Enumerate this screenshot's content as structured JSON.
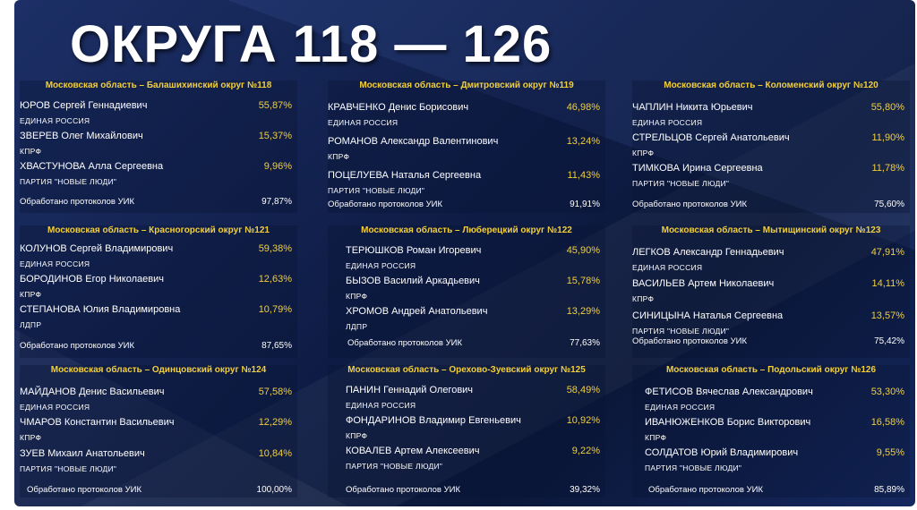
{
  "title": "ОКРУГА 118 — 126",
  "protocols_label": "Обработано протоколов УИК",
  "districts": [
    {
      "header": "Московская область – Балашихинский округ №118",
      "candidates": [
        {
          "name": "ЮРОВ Сергей Геннадиевич",
          "party": "ЕДИНАЯ РОССИЯ",
          "pct": "55,87%"
        },
        {
          "name": "ЗВЕРЕВ Олег Михайлович",
          "party": "КПРФ",
          "pct": "15,37%"
        },
        {
          "name": "ХВАСТУНОВА Алла Сергеевна",
          "party": "ПАРТИЯ \"НОВЫЕ ЛЮДИ\"",
          "pct": "9,96%"
        }
      ],
      "protocols": "97,87%"
    },
    {
      "header": "Московская область – Дмитровский округ №119",
      "candidates": [
        {
          "name": "КРАВЧЕНКО Денис Борисович",
          "party": "ЕДИНАЯ РОССИЯ",
          "pct": "46,98%"
        },
        {
          "name": "РОМАНОВ Александр Валентинович",
          "party": "КПРФ",
          "pct": "13,24%"
        },
        {
          "name": "ПОЦЕЛУЕВА Наталья Сергеевна",
          "party": "ПАРТИЯ \"НОВЫЕ ЛЮДИ\"",
          "pct": "11,43%"
        }
      ],
      "protocols": "91,91%"
    },
    {
      "header": "Московская область – Коломенский округ №120",
      "candidates": [
        {
          "name": "ЧАПЛИН Никита Юрьевич",
          "party": "ЕДИНАЯ РОССИЯ",
          "pct": "55,80%"
        },
        {
          "name": "СТРЕЛЬЦОВ Сергей Анатольевич",
          "party": "КПРФ",
          "pct": "11,90%"
        },
        {
          "name": "ТИМКОВА Ирина Сергеевна",
          "party": "ПАРТИЯ \"НОВЫЕ ЛЮДИ\"",
          "pct": "11,78%"
        }
      ],
      "protocols": "75,60%"
    },
    {
      "header": "Московская область – Красногорский округ №121",
      "candidates": [
        {
          "name": "КОЛУНОВ Сергей Владимирович",
          "party": "ЕДИНАЯ РОССИЯ",
          "pct": "59,38%"
        },
        {
          "name": "БОРОДИНОВ Егор Николаевич",
          "party": "КПРФ",
          "pct": "12,63%"
        },
        {
          "name": "СТЕПАНОВА Юлия Владимировна",
          "party": "ЛДПР",
          "pct": "10,79%"
        }
      ],
      "protocols": "87,65%"
    },
    {
      "header": "Московская область – Люберецкий округ №122",
      "candidates": [
        {
          "name": "ТЕРЮШКОВ Роман Игоревич",
          "party": "ЕДИНАЯ РОССИЯ",
          "pct": "45,90%"
        },
        {
          "name": "БЫЗОВ Василий Аркадьевич",
          "party": "КПРФ",
          "pct": "15,78%"
        },
        {
          "name": "ХРОМОВ Андрей Анатольевич",
          "party": "ЛДПР",
          "pct": "13,29%"
        }
      ],
      "protocols": "77,63%"
    },
    {
      "header": "Московская область – Мытищинский округ №123",
      "candidates": [
        {
          "name": "ЛЕГКОВ Александр Геннадьевич",
          "party": "ЕДИНАЯ РОССИЯ",
          "pct": "47,91%"
        },
        {
          "name": "ВАСИЛЬЕВ Артем Николаевич",
          "party": "КПРФ",
          "pct": "14,11%"
        },
        {
          "name": "СИНИЦЫНА Наталья Сергеевна",
          "party": "ПАРТИЯ \"НОВЫЕ ЛЮДИ\"",
          "pct": "13,57%"
        }
      ],
      "protocols": "75,42%"
    },
    {
      "header": "Московская область – Одинцовский округ №124",
      "candidates": [
        {
          "name": "МАЙДАНОВ Денис Васильевич",
          "party": "ЕДИНАЯ РОССИЯ",
          "pct": "57,58%"
        },
        {
          "name": "ЧМАРОВ Константин Васильевич",
          "party": "КПРФ",
          "pct": "12,29%"
        },
        {
          "name": "ЗУЕВ Михаил Анатольевич",
          "party": "ПАРТИЯ \"НОВЫЕ ЛЮДИ\"",
          "pct": "10,84%"
        }
      ],
      "protocols": "100,00%"
    },
    {
      "header": "Московская область – Орехово-Зуевский округ №125",
      "candidates": [
        {
          "name": "ПАНИН Геннадий Олегович",
          "party": "ЕДИНАЯ РОССИЯ",
          "pct": "58,49%"
        },
        {
          "name": "ФОНДАРИНОВ Владимир Евгеньевич",
          "party": "КПРФ",
          "pct": "10,92%"
        },
        {
          "name": "КОВАЛЕВ Артем Алексеевич",
          "party": "ПАРТИЯ \"НОВЫЕ ЛЮДИ\"",
          "pct": "9,22%"
        }
      ],
      "protocols": "39,32%"
    },
    {
      "header": "Московская область – Подольский округ №126",
      "candidates": [
        {
          "name": "ФЕТИСОВ Вячеслав Александрович",
          "party": "ЕДИНАЯ РОССИЯ",
          "pct": "53,30%"
        },
        {
          "name": "ИВАНЮЖЕНКОВ Борис Викторович",
          "party": "КПРФ",
          "pct": "16,58%"
        },
        {
          "name": "СОЛДАТОВ Юрий Владимирович",
          "party": "ПАРТИЯ \"НОВЫЕ ЛЮДИ\"",
          "pct": "9,55%"
        }
      ],
      "protocols": "85,89%"
    }
  ],
  "colors": {
    "background": "#0f1d47",
    "accent": "#f2cf3a",
    "text": "#ffffff"
  }
}
